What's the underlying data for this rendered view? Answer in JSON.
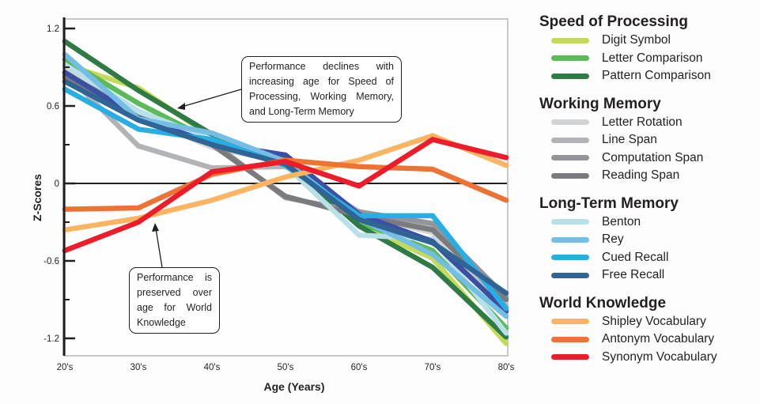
{
  "chart_data": {
    "type": "line",
    "title": "",
    "xlabel": "Age (Years)",
    "ylabel": "Z-Scores",
    "categories": [
      "20's",
      "30's",
      "40's",
      "50's",
      "60's",
      "70's",
      "80's"
    ],
    "yticks": [
      "1.2",
      "0.6",
      "0",
      "-0.6",
      "-1.2"
    ],
    "ylim": [
      -1.3,
      1.3
    ],
    "groups": [
      {
        "name": "Speed of Processing",
        "series": [
          {
            "name": "Digit Symbol",
            "color": "#c5d95a",
            "values": [
              0.92,
              0.74,
              0.36,
              0.16,
              -0.32,
              -0.58,
              -1.24
            ]
          },
          {
            "name": "Letter Comparison",
            "color": "#5dba5a",
            "values": [
              0.96,
              0.62,
              0.33,
              0.18,
              -0.3,
              -0.52,
              -1.12
            ]
          },
          {
            "name": "Pattern Comparison",
            "color": "#2e7b45",
            "values": [
              1.1,
              0.72,
              0.38,
              0.17,
              -0.33,
              -0.65,
              -1.19
            ]
          }
        ]
      },
      {
        "name": "Working Memory",
        "series": [
          {
            "name": "Letter Rotation",
            "color": "#d2d3d5",
            "values": [
              0.9,
              0.52,
              0.28,
              0.16,
              -0.25,
              -0.38,
              -1.0
            ]
          },
          {
            "name": "Line Span",
            "color": "#b1b3b6",
            "values": [
              0.86,
              0.29,
              0.12,
              0.13,
              -0.22,
              -0.34,
              -0.95
            ]
          },
          {
            "name": "Computation Span",
            "color": "#939598",
            "values": [
              0.84,
              0.56,
              0.32,
              -0.11,
              -0.22,
              -0.31,
              -0.88
            ]
          },
          {
            "name": "Reading Span",
            "color": "#7a7b7e",
            "values": [
              0.82,
              0.5,
              0.3,
              -0.1,
              -0.25,
              -0.36,
              -0.9
            ]
          }
        ]
      },
      {
        "name": "Long-Term Memory",
        "series": [
          {
            "name": "Benton",
            "color": "#b7e0e8",
            "values": [
              0.92,
              0.56,
              0.34,
              0.14,
              -0.4,
              -0.43,
              -1.16
            ]
          },
          {
            "name": "Rey",
            "color": "#74bde3",
            "values": [
              1.0,
              0.5,
              0.39,
              0.17,
              -0.27,
              -0.55,
              -1.03
            ]
          },
          {
            "name": "Cued Recall",
            "color": "#27aee5",
            "values": [
              0.73,
              0.42,
              0.34,
              0.14,
              -0.25,
              -0.25,
              -0.97
            ]
          },
          {
            "name": "Free Recall",
            "color": "#2f6494",
            "values": [
              0.79,
              0.49,
              0.3,
              0.15,
              -0.28,
              -0.46,
              -0.85
            ]
          }
        ]
      },
      {
        "name": "World Knowledge",
        "series": [
          {
            "name": "Shipley Vocabulary",
            "color": "#fbb462",
            "values": [
              -0.36,
              -0.27,
              -0.13,
              0.05,
              0.18,
              0.37,
              0.14
            ]
          },
          {
            "name": "Antonym Vocabulary",
            "color": "#ec7333",
            "values": [
              -0.2,
              -0.19,
              0.07,
              0.18,
              0.13,
              0.11,
              -0.13
            ]
          },
          {
            "name": "Synonym Vocabulary",
            "color": "#ec1c2b",
            "values": [
              -0.52,
              -0.3,
              0.09,
              0.17,
              -0.02,
              0.34,
              0.2
            ]
          }
        ]
      }
    ],
    "extra_lines": [
      {
        "name": "Royal Blue",
        "color": "#3b4fa3",
        "values": [
          0.86,
          0.51,
          0.31,
          0.22,
          -0.24,
          -0.45,
          -0.99
        ]
      }
    ],
    "annotations": [
      {
        "text": "Performance declines with increasing age for Speed of Processing, Working Memory, and Long-Term Memory",
        "points_to": "declining lines"
      },
      {
        "text": "Performance is preserved over age for World Knowledge",
        "points_to": "world knowledge lines"
      }
    ],
    "grid": false,
    "legend_position": "right"
  }
}
